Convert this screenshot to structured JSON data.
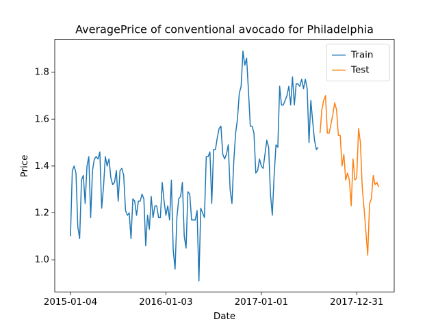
{
  "chart_data": {
    "type": "line",
    "title": "AveragePrice of conventional avocado for Philadelphia",
    "x_label": "Date",
    "y_label": "Price",
    "xlim": [
      "2014-11-05",
      "2018-05-23"
    ],
    "xticks": [
      "2015-01-04",
      "2016-01-03",
      "2017-01-01",
      "2017-12-31"
    ],
    "ylim": [
      0.863,
      1.94
    ],
    "yticks": [
      {
        "value": 1.0,
        "label": "1.0"
      },
      1.2,
      1.4,
      1.6,
      1.8
    ],
    "grid": false,
    "legend": "upper right",
    "series": [
      {
        "name": "Train",
        "color": "#1f77b4",
        "x": [
          "2015-01-04",
          "2015-01-11",
          "2015-01-18",
          "2015-01-25",
          "2015-02-01",
          "2015-02-08",
          "2015-02-15",
          "2015-02-22",
          "2015-03-01",
          "2015-03-08",
          "2015-03-15",
          "2015-03-22",
          "2015-03-29",
          "2015-04-05",
          "2015-04-12",
          "2015-04-19",
          "2015-04-26",
          "2015-05-03",
          "2015-05-10",
          "2015-05-17",
          "2015-05-24",
          "2015-05-31",
          "2015-06-07",
          "2015-06-14",
          "2015-06-21",
          "2015-06-28",
          "2015-07-05",
          "2015-07-12",
          "2015-07-19",
          "2015-07-26",
          "2015-08-02",
          "2015-08-09",
          "2015-08-16",
          "2015-08-23",
          "2015-08-30",
          "2015-09-06",
          "2015-09-13",
          "2015-09-20",
          "2015-09-27",
          "2015-10-04",
          "2015-10-11",
          "2015-10-18",
          "2015-10-25",
          "2015-11-01",
          "2015-11-08",
          "2015-11-15",
          "2015-11-22",
          "2015-11-29",
          "2015-12-06",
          "2015-12-13",
          "2015-12-20",
          "2015-12-27",
          "2016-01-03",
          "2016-01-10",
          "2016-01-17",
          "2016-01-24",
          "2016-01-31",
          "2016-02-07",
          "2016-02-14",
          "2016-02-21",
          "2016-02-28",
          "2016-03-06",
          "2016-03-13",
          "2016-03-20",
          "2016-03-27",
          "2016-04-03",
          "2016-04-10",
          "2016-04-17",
          "2016-04-24",
          "2016-05-01",
          "2016-05-08",
          "2016-05-15",
          "2016-05-22",
          "2016-05-29",
          "2016-06-05",
          "2016-06-12",
          "2016-06-19",
          "2016-06-26",
          "2016-07-03",
          "2016-07-10",
          "2016-07-17",
          "2016-07-24",
          "2016-07-31",
          "2016-08-07",
          "2016-08-14",
          "2016-08-21",
          "2016-08-28",
          "2016-09-04",
          "2016-09-11",
          "2016-09-18",
          "2016-09-25",
          "2016-10-02",
          "2016-10-09",
          "2016-10-16",
          "2016-10-23",
          "2016-10-30",
          "2016-11-06",
          "2016-11-13",
          "2016-11-20",
          "2016-11-27",
          "2016-12-04",
          "2016-12-11",
          "2016-12-18",
          "2016-12-25",
          "2017-01-01",
          "2017-01-08",
          "2017-01-15",
          "2017-01-22",
          "2017-01-29",
          "2017-02-05",
          "2017-02-12",
          "2017-02-19",
          "2017-02-26",
          "2017-03-05",
          "2017-03-12",
          "2017-03-19",
          "2017-03-26",
          "2017-04-02",
          "2017-04-09",
          "2017-04-16",
          "2017-04-23",
          "2017-04-30",
          "2017-05-07",
          "2017-05-14",
          "2017-05-21",
          "2017-05-28",
          "2017-06-04",
          "2017-06-11",
          "2017-06-18",
          "2017-06-25",
          "2017-07-02",
          "2017-07-09",
          "2017-07-16",
          "2017-07-23",
          "2017-07-30",
          "2017-08-06"
        ],
        "values": [
          1.1,
          1.38,
          1.4,
          1.37,
          1.14,
          1.09,
          1.34,
          1.36,
          1.24,
          1.4,
          1.44,
          1.18,
          1.38,
          1.43,
          1.44,
          1.43,
          1.46,
          1.22,
          1.31,
          1.44,
          1.4,
          1.43,
          1.35,
          1.32,
          1.33,
          1.38,
          1.25,
          1.38,
          1.39,
          1.36,
          1.21,
          1.19,
          1.2,
          1.09,
          1.26,
          1.25,
          1.19,
          1.25,
          1.25,
          1.28,
          1.26,
          1.06,
          1.19,
          1.13,
          1.27,
          1.18,
          1.23,
          1.23,
          1.18,
          1.18,
          1.33,
          1.25,
          1.19,
          1.23,
          1.17,
          1.34,
          1.04,
          0.96,
          1.18,
          1.26,
          1.27,
          1.33,
          1.1,
          1.05,
          1.29,
          1.28,
          1.17,
          1.17,
          1.17,
          1.21,
          0.91,
          1.22,
          1.2,
          1.18,
          1.44,
          1.44,
          1.46,
          1.24,
          1.47,
          1.47,
          1.52,
          1.56,
          1.57,
          1.45,
          1.43,
          1.45,
          1.49,
          1.3,
          1.24,
          1.42,
          1.54,
          1.6,
          1.71,
          1.74,
          1.89,
          1.83,
          1.86,
          1.72,
          1.57,
          1.57,
          1.54,
          1.37,
          1.38,
          1.43,
          1.4,
          1.39,
          1.45,
          1.51,
          1.48,
          1.28,
          1.19,
          1.36,
          1.49,
          1.48,
          1.74,
          1.66,
          1.66,
          1.68,
          1.7,
          1.74,
          1.66,
          1.78,
          1.66,
          1.75,
          1.75,
          1.74,
          1.77,
          1.73,
          1.77,
          1.73,
          1.5,
          1.68,
          1.59,
          1.51,
          1.47,
          1.48
        ]
      },
      {
        "name": "Test",
        "color": "#ff7f0e",
        "x": [
          "2017-08-13",
          "2017-08-20",
          "2017-08-27",
          "2017-09-03",
          "2017-09-10",
          "2017-09-17",
          "2017-09-24",
          "2017-10-01",
          "2017-10-08",
          "2017-10-15",
          "2017-10-22",
          "2017-10-29",
          "2017-11-05",
          "2017-11-12",
          "2017-11-19",
          "2017-11-26",
          "2017-12-03",
          "2017-12-10",
          "2017-12-17",
          "2017-12-24",
          "2017-12-31",
          "2018-01-07",
          "2018-01-14",
          "2018-01-21",
          "2018-01-28",
          "2018-02-04",
          "2018-02-11",
          "2018-02-18",
          "2018-02-25",
          "2018-03-04",
          "2018-03-11",
          "2018-03-18",
          "2018-03-25"
        ],
        "values": [
          1.54,
          1.64,
          1.68,
          1.7,
          1.54,
          1.54,
          1.58,
          1.62,
          1.67,
          1.64,
          1.53,
          1.53,
          1.4,
          1.45,
          1.34,
          1.37,
          1.34,
          1.23,
          1.43,
          1.34,
          1.35,
          1.56,
          1.5,
          1.31,
          1.22,
          1.12,
          1.02,
          1.24,
          1.26,
          1.36,
          1.32,
          1.33,
          1.31
        ]
      }
    ]
  }
}
